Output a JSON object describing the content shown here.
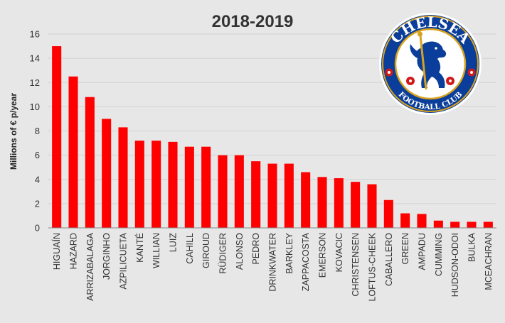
{
  "chart_data": {
    "type": "bar",
    "title": "2018-2019",
    "xlabel": "",
    "ylabel": "Millions of € p/year",
    "ylim": [
      0,
      16
    ],
    "yticks": [
      0,
      2,
      4,
      6,
      8,
      10,
      12,
      14,
      16
    ],
    "grid": true,
    "bar_color": "#ff0000",
    "categories": [
      "HIGUAÍN",
      "HAZARD",
      "ARRIZABALAGA",
      "JORGINHO",
      "AZPILICUETA",
      "KANTÉ",
      "WILLIAN",
      "LUIZ",
      "CAHILL",
      "GIROUD",
      "RÜDIGER",
      "ALONSO",
      "PEDRO",
      "DRINKWATER",
      "BARKLEY",
      "ZAPPACOSTA",
      "EMERSON",
      "KOVACIC",
      "CHRISTENSEN",
      "LOFTUS-CHEEK",
      "CABALLERO",
      "GREEN",
      "AMPADU",
      "CUMMING",
      "HUDSON-ODOI",
      "BULKA",
      "MCEACHRAN"
    ],
    "values": [
      15.0,
      12.5,
      10.8,
      9.0,
      8.3,
      7.2,
      7.2,
      7.1,
      6.7,
      6.7,
      6.0,
      6.0,
      5.5,
      5.3,
      5.3,
      4.6,
      4.2,
      4.1,
      3.8,
      3.6,
      2.3,
      1.2,
      1.15,
      0.6,
      0.5,
      0.5,
      0.5
    ]
  },
  "logo": {
    "text_top": "CHELSEA",
    "text_bottom": "FOOTBALL CLUB",
    "color_blue": "#0a3e9a",
    "color_gold": "#d8a21c",
    "color_red": "#d11a1a"
  }
}
